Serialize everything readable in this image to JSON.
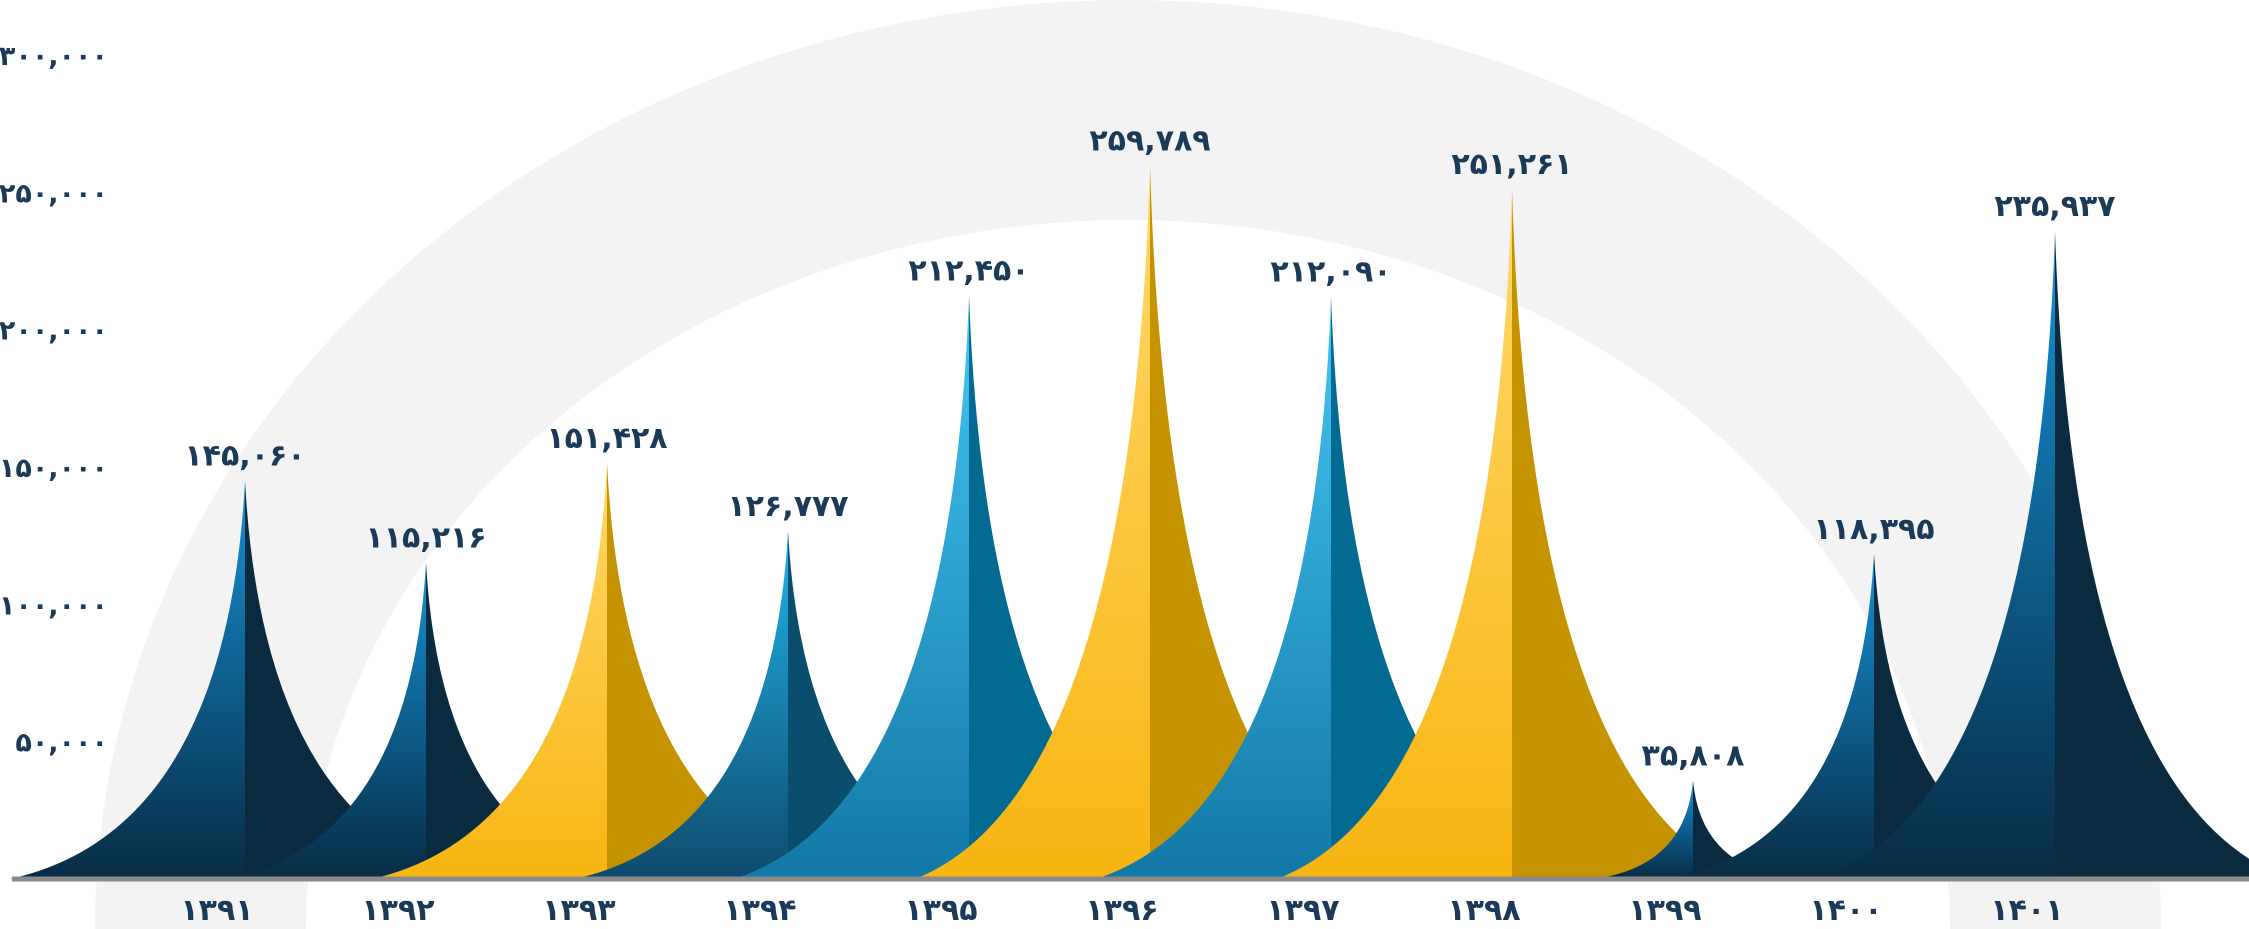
{
  "chart_data": {
    "type": "area",
    "categories": [
      "۱۳۹۱",
      "۱۳۹۲",
      "۱۳۹۳",
      "۱۳۹۴",
      "۱۳۹۵",
      "۱۳۹۶",
      "۱۳۹۷",
      "۱۳۹۸",
      "۱۳۹۹",
      "۱۴۰۰",
      "۱۴۰۱"
    ],
    "values": [
      145060,
      115216,
      151428,
      126777,
      212450,
      259789,
      212090,
      251261,
      35808,
      118395,
      235937
    ],
    "value_labels": [
      "۱۴۵,۰۶۰",
      "۱۱۵,۲۱۶",
      "۱۵۱,۴۲۸",
      "۱۲۶,۷۷۷",
      "۲۱۲,۴۵۰",
      "۲۵۹,۷۸۹",
      "۲۱۲,۰۹۰",
      "۲۵۱,۲۶۱",
      "۳۵,۸۰۸",
      "۱۱۸,۳۹۵",
      "۲۳۵,۹۳۷"
    ],
    "colors": [
      "dark-blue",
      "dark-blue",
      "gold",
      "teal",
      "blue",
      "gold",
      "blue",
      "gold",
      "dark-blue",
      "dark-blue",
      "dark-blue"
    ],
    "ylim": [
      0,
      300000
    ],
    "y_ticks": [
      50000,
      100000,
      150000,
      200000,
      250000,
      300000
    ],
    "y_tick_labels": [
      "۵۰,۰۰۰",
      "۱۰۰,۰۰۰",
      "۱۵۰,۰۰۰",
      "۲۰۰,۰۰۰",
      "۲۵۰,۰۰۰",
      "۳۰۰,۰۰۰"
    ],
    "grid": false,
    "title": "",
    "xlabel": "",
    "ylabel": ""
  },
  "palette": {
    "dark_blue_top": "#1592d6",
    "dark_blue_bottom": "#072b44",
    "dark_blue_shadow": "#0a2a40",
    "blue_top": "#45c7f5",
    "blue_bottom": "#1278a6",
    "blue_shadow": "#036a91",
    "teal_top": "#1fb6ea",
    "teal_bottom": "#0e4a6d",
    "teal_shadow": "#0b4d6c",
    "gold_top": "#ffd86b",
    "gold_bottom": "#f8b511",
    "gold_shadow": "#c59200",
    "label": "#1b3a57",
    "baseline": "#8a8a8a",
    "arc": "#f3f3f3"
  }
}
